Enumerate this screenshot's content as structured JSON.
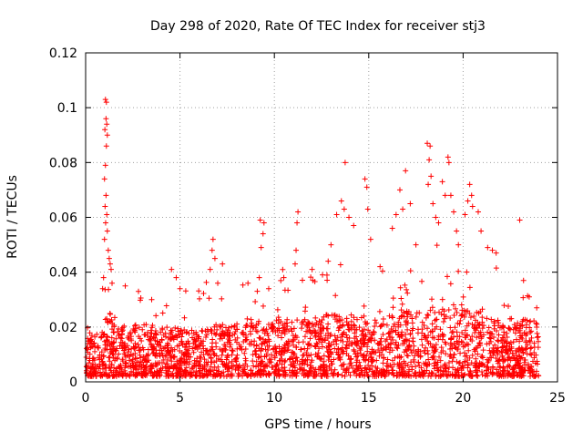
{
  "chart_data": {
    "type": "scatter",
    "title": "Day 298 of 2020, Rate Of TEC Index for receiver stj3",
    "xlabel": "GPS time / hours",
    "ylabel": "ROTI / TECUs",
    "xlim": [
      0,
      25
    ],
    "ylim": [
      0,
      0.12
    ],
    "x_ticks": [
      0,
      5,
      10,
      15,
      20,
      25
    ],
    "x_tick_labels": [
      "0",
      "5",
      "10",
      "15",
      "20",
      "25"
    ],
    "y_ticks": [
      0,
      0.02,
      0.04,
      0.06,
      0.08,
      0.1,
      0.12
    ],
    "y_tick_labels": [
      "0",
      "0.02",
      "0.04",
      "0.06",
      "0.08",
      "0.1",
      "0.12"
    ],
    "grid": true,
    "marker": "+",
    "series": [
      {
        "name": "ROTI",
        "color": "#ff0000",
        "points": [
          [
            1.05,
            0.103
          ],
          [
            1.1,
            0.102
          ],
          [
            1.08,
            0.096
          ],
          [
            1.12,
            0.094
          ],
          [
            1.02,
            0.092
          ],
          [
            1.15,
            0.09
          ],
          [
            1.1,
            0.086
          ],
          [
            1.05,
            0.079
          ],
          [
            1.0,
            0.074
          ],
          [
            1.08,
            0.068
          ],
          [
            1.03,
            0.064
          ],
          [
            1.12,
            0.061
          ],
          [
            1.06,
            0.058
          ],
          [
            1.15,
            0.055
          ],
          [
            1.0,
            0.052
          ],
          [
            1.2,
            0.048
          ],
          [
            1.25,
            0.045
          ],
          [
            1.3,
            0.043
          ],
          [
            1.35,
            0.041
          ],
          [
            0.95,
            0.038
          ],
          [
            1.4,
            0.036
          ],
          [
            0.9,
            0.034
          ],
          [
            2.1,
            0.035
          ],
          [
            2.8,
            0.033
          ],
          [
            3.5,
            0.03
          ],
          [
            4.55,
            0.041
          ],
          [
            4.8,
            0.038
          ],
          [
            5.0,
            0.034
          ],
          [
            6.75,
            0.052
          ],
          [
            6.7,
            0.048
          ],
          [
            6.85,
            0.045
          ],
          [
            6.6,
            0.041
          ],
          [
            7.25,
            0.043
          ],
          [
            7.0,
            0.036
          ],
          [
            8.6,
            0.036
          ],
          [
            9.25,
            0.059
          ],
          [
            9.45,
            0.058
          ],
          [
            9.4,
            0.054
          ],
          [
            9.3,
            0.049
          ],
          [
            9.2,
            0.038
          ],
          [
            9.7,
            0.034
          ],
          [
            10.5,
            0.038
          ],
          [
            11.25,
            0.062
          ],
          [
            11.2,
            0.058
          ],
          [
            11.15,
            0.048
          ],
          [
            11.1,
            0.043
          ],
          [
            12.0,
            0.041
          ],
          [
            12.55,
            0.039
          ],
          [
            12.85,
            0.044
          ],
          [
            13.0,
            0.05
          ],
          [
            13.3,
            0.061
          ],
          [
            13.55,
            0.066
          ],
          [
            13.75,
            0.08
          ],
          [
            13.7,
            0.063
          ],
          [
            13.95,
            0.06
          ],
          [
            14.2,
            0.057
          ],
          [
            14.8,
            0.074
          ],
          [
            14.9,
            0.071
          ],
          [
            14.95,
            0.063
          ],
          [
            15.1,
            0.052
          ],
          [
            15.6,
            0.042
          ],
          [
            16.25,
            0.056
          ],
          [
            16.45,
            0.061
          ],
          [
            16.65,
            0.07
          ],
          [
            16.8,
            0.063
          ],
          [
            16.95,
            0.077
          ],
          [
            17.2,
            0.065
          ],
          [
            17.5,
            0.05
          ],
          [
            18.1,
            0.087
          ],
          [
            18.25,
            0.086
          ],
          [
            18.2,
            0.081
          ],
          [
            18.3,
            0.075
          ],
          [
            18.15,
            0.072
          ],
          [
            18.4,
            0.065
          ],
          [
            18.55,
            0.06
          ],
          [
            18.7,
            0.058
          ],
          [
            18.9,
            0.073
          ],
          [
            19.2,
            0.082
          ],
          [
            19.25,
            0.08
          ],
          [
            19.05,
            0.068
          ],
          [
            19.35,
            0.068
          ],
          [
            19.5,
            0.062
          ],
          [
            19.65,
            0.055
          ],
          [
            19.75,
            0.05
          ],
          [
            20.1,
            0.061
          ],
          [
            20.25,
            0.066
          ],
          [
            20.35,
            0.072
          ],
          [
            20.45,
            0.068
          ],
          [
            20.5,
            0.064
          ],
          [
            20.8,
            0.062
          ],
          [
            20.95,
            0.055
          ],
          [
            21.3,
            0.049
          ],
          [
            21.55,
            0.048
          ],
          [
            21.75,
            0.047
          ],
          [
            23.0,
            0.059
          ],
          [
            23.2,
            0.037
          ],
          [
            23.5,
            0.031
          ],
          [
            23.9,
            0.027
          ]
        ],
        "dense_band": {
          "x_range": [
            0,
            24
          ],
          "baseline_min": 0.002,
          "baseline_max": 0.02,
          "note": "dense cloud of points covering the whole day"
        }
      }
    ]
  }
}
